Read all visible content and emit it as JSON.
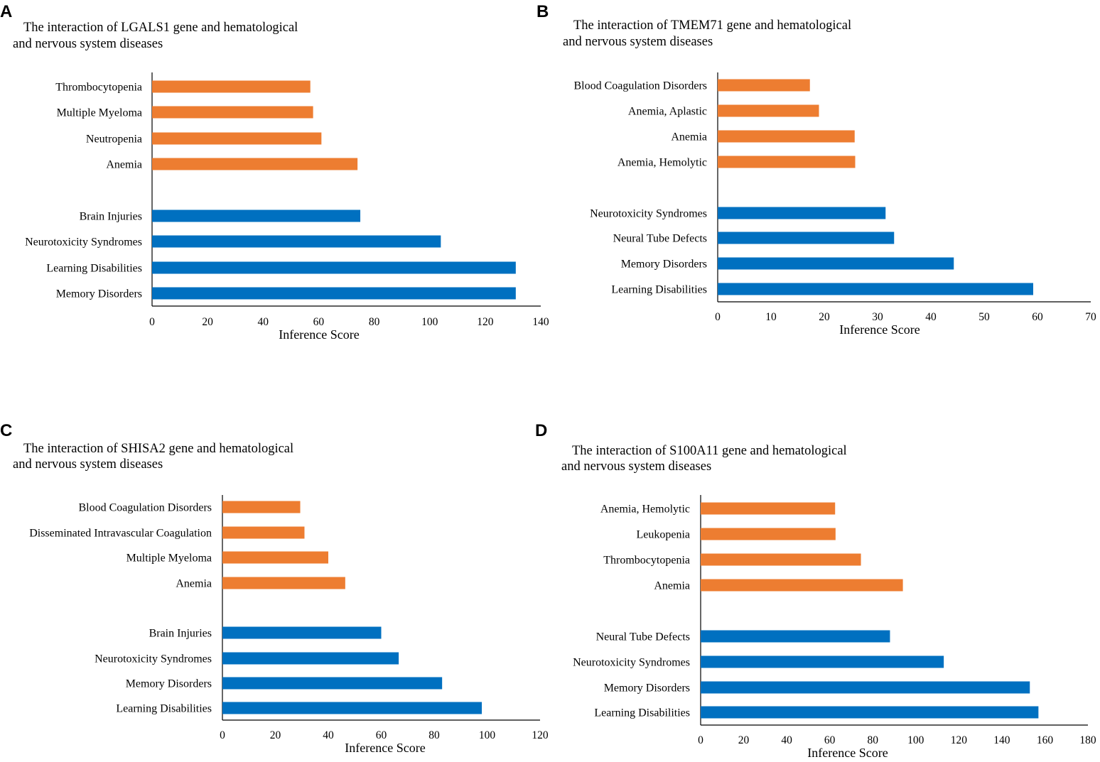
{
  "colors": {
    "hematological": "#ED7D31",
    "nervous": "#0070C0"
  },
  "chart_data": [
    {
      "type": "bar",
      "orientation": "horizontal",
      "panel": "A",
      "title_lines": [
        "The interaction of LGALS1 gene and hematological",
        "and nervous system diseases"
      ],
      "xlabel": "Inference Score",
      "xlim": [
        0,
        140
      ],
      "xticks": [
        0,
        20,
        40,
        60,
        80,
        100,
        120,
        140
      ],
      "groups": [
        {
          "name": "hematological",
          "categories": [
            "Thrombocytopenia",
            "Multiple Myeloma",
            "Neutropenia",
            "Anemia"
          ],
          "values": [
            57,
            58,
            61,
            74
          ]
        },
        {
          "name": "nervous",
          "categories": [
            "Brain Injuries",
            "Neurotoxicity Syndromes",
            "Learning Disabilities",
            "Memory Disorders"
          ],
          "values": [
            75,
            104,
            131,
            131
          ]
        }
      ]
    },
    {
      "type": "bar",
      "orientation": "horizontal",
      "panel": "B",
      "title_lines": [
        "The interaction of TMEM71 gene and hematological",
        "and nervous system diseases"
      ],
      "xlabel": "Inference Score",
      "xlim": [
        0,
        70
      ],
      "xticks": [
        0,
        10,
        20,
        30,
        40,
        50,
        60,
        70
      ],
      "groups": [
        {
          "name": "hematological",
          "categories": [
            "Blood Coagulation Disorders",
            "Anemia, Aplastic",
            "Anemia",
            "Anemia, Hemolytic"
          ],
          "values": [
            17.3,
            19,
            25.7,
            25.8
          ]
        },
        {
          "name": "nervous",
          "categories": [
            "Neurotoxicity Syndromes",
            "Neural Tube Defects",
            "Memory Disorders",
            "Learning Disabilities"
          ],
          "values": [
            31.5,
            33.1,
            44.3,
            59.2
          ]
        }
      ]
    },
    {
      "type": "bar",
      "orientation": "horizontal",
      "panel": "C",
      "title_lines": [
        "The interaction of SHISA2 gene and hematological",
        "and nervous system diseases"
      ],
      "xlabel": "Inference Score",
      "xlim": [
        0,
        120
      ],
      "xticks": [
        0,
        20,
        40,
        60,
        80,
        100,
        120
      ],
      "groups": [
        {
          "name": "hematological",
          "categories": [
            "Blood Coagulation Disorders",
            "Disseminated Intravascular Coagulation",
            "Multiple Myeloma",
            "Anemia"
          ],
          "values": [
            29.4,
            31,
            40,
            46.4
          ]
        },
        {
          "name": "nervous",
          "categories": [
            "Brain Injuries",
            "Neurotoxicity Syndromes",
            "Memory Disorders",
            "Learning Disabilities"
          ],
          "values": [
            60,
            66.6,
            83,
            98
          ]
        }
      ]
    },
    {
      "type": "bar",
      "orientation": "horizontal",
      "panel": "D",
      "title_lines": [
        "The interaction of S100A11 gene and hematological",
        "and nervous system diseases"
      ],
      "xlabel": "Inference Score",
      "xlim": [
        0,
        180
      ],
      "xticks": [
        0,
        20,
        40,
        60,
        80,
        100,
        120,
        140,
        160,
        180
      ],
      "groups": [
        {
          "name": "hematological",
          "categories": [
            "Anemia, Hemolytic",
            "Leukopenia",
            "Thrombocytopenia",
            "Anemia"
          ],
          "values": [
            62.5,
            62.7,
            74.5,
            94
          ]
        },
        {
          "name": "nervous",
          "categories": [
            "Neural Tube Defects",
            "Neurotoxicity Syndromes",
            "Memory Disorders",
            "Learning Disabilities"
          ],
          "values": [
            88,
            113,
            153,
            157
          ]
        }
      ]
    }
  ]
}
